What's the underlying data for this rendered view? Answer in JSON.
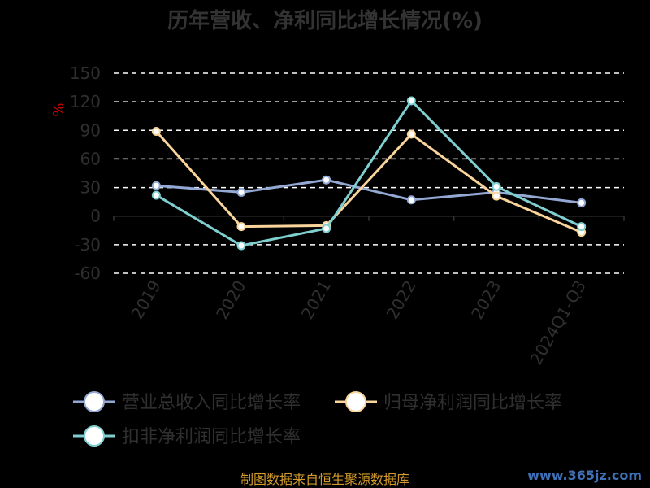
{
  "chart_data": {
    "type": "line",
    "title": "历年营收、净利同比增长情况(%)",
    "ylabel": "%",
    "categories": [
      "2019",
      "2020",
      "2021",
      "2022",
      "2023",
      "2024Q1-Q3"
    ],
    "ylim": [
      -60,
      150
    ],
    "yticks": [
      150,
      120,
      90,
      60,
      30,
      0,
      -30,
      -60
    ],
    "grid": true,
    "legend_position": "bottom",
    "series": [
      {
        "name": "营业总收入同比增长率",
        "color": "#93a9d4",
        "values": [
          32,
          25,
          38,
          17,
          25,
          14
        ]
      },
      {
        "name": "归母净利润同比增长率",
        "color": "#f9d49b",
        "values": [
          89,
          -11,
          -10,
          86,
          21,
          -17
        ]
      },
      {
        "name": "扣非净利润同比增长率",
        "color": "#7fcfd0",
        "values": [
          22,
          -31,
          -13,
          121,
          31,
          -11
        ]
      }
    ]
  },
  "footer": {
    "source": "制图数据来自恒生聚源数据库",
    "watermark": "www.365jz.com"
  }
}
